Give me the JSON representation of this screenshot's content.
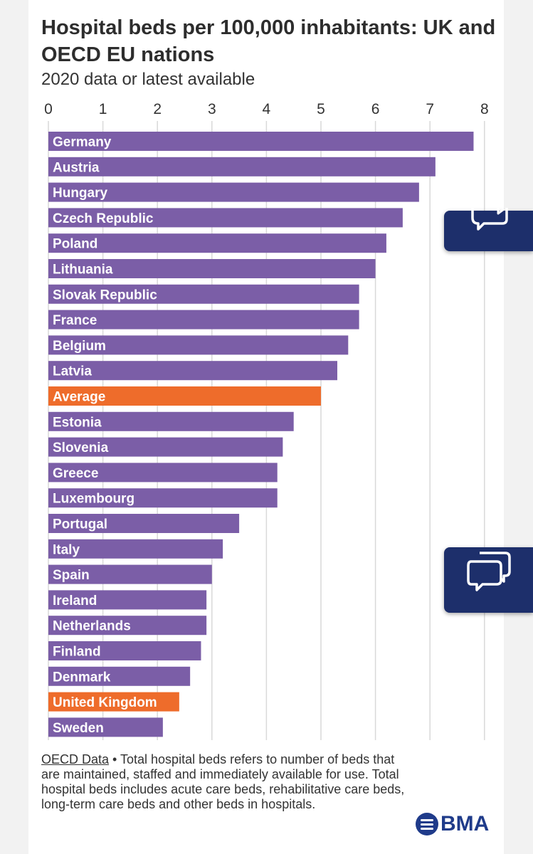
{
  "title": "Hospital beds per 100,000 inhabitants: UK and OECD EU nations",
  "subtitle": "2020 data or latest available",
  "colors": {
    "bar": "#7b5ea7",
    "highlight": "#ee6c2b",
    "grid": "#d9d9d9",
    "brand": "#1f3b8a",
    "chat_tab": "#1d2f6b"
  },
  "chart_data": {
    "type": "bar",
    "orientation": "horizontal",
    "title": "Hospital beds per 100,000 inhabitants: UK and OECD EU nations",
    "subtitle": "2020 data or latest available",
    "xlim": [
      0,
      8
    ],
    "xticks": [
      "0",
      "1",
      "2",
      "3",
      "4",
      "5",
      "6",
      "7",
      "8"
    ],
    "grid": true,
    "categories": [
      "Germany",
      "Austria",
      "Hungary",
      "Czech Republic",
      "Poland",
      "Lithuania",
      "Slovak Republic",
      "France",
      "Belgium",
      "Latvia",
      "Average",
      "Estonia",
      "Slovenia",
      "Greece",
      "Luxembourg",
      "Portugal",
      "Italy",
      "Spain",
      "Ireland",
      "Netherlands",
      "Finland",
      "Denmark",
      "United Kingdom",
      "Sweden"
    ],
    "values": [
      7.8,
      7.1,
      6.8,
      6.5,
      6.2,
      6.0,
      5.7,
      5.7,
      5.5,
      5.3,
      5.0,
      4.5,
      4.3,
      4.2,
      4.2,
      3.5,
      3.2,
      3.0,
      2.9,
      2.9,
      2.8,
      2.6,
      2.4,
      2.1
    ],
    "highlighted": [
      "Average",
      "United Kingdom"
    ]
  },
  "footnote": {
    "source_link": "OECD Data",
    "separator": " • ",
    "text": "Total hospital beds refers to number of beds that are maintained, staffed and immediately available for use. Total hospital beds includes acute care beds, rehabilitative care beds, long-term care beds and other beds in hospitals."
  },
  "logo": {
    "text": "BMA",
    "icon": "bma-logo-icon"
  },
  "chat_buttons": [
    {
      "icon": "chat-bubbles-icon"
    },
    {
      "icon": "chat-bubbles-icon"
    }
  ]
}
